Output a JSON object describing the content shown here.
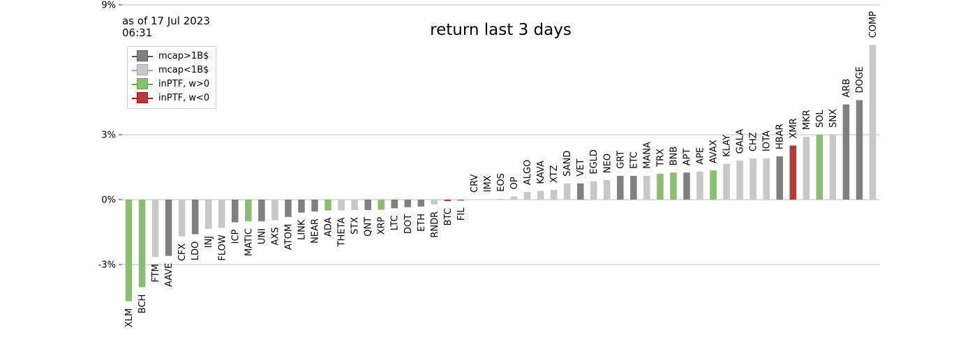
{
  "header": {
    "as_of_date": "as of 17 Jul 2023",
    "as_of_time": "06:31"
  },
  "legend": [
    {
      "label": "mcap>1B$",
      "color": "#808080",
      "edge": "#5a5a5a"
    },
    {
      "label": "mcap<1B$",
      "color": "#c8c8c8",
      "edge": "#a8a8a8"
    },
    {
      "label": "inPTF, w>0",
      "color": "#8cbd74",
      "edge": "#6aa050"
    },
    {
      "label": "inPTF, w<0",
      "color": "#b33b3b",
      "edge": "#8e2020"
    }
  ],
  "chart_data": {
    "type": "bar",
    "title": "return last 3 days",
    "xlabel": "",
    "ylabel": "",
    "ylim": [
      -5.6,
      10.8
    ],
    "yticks": [
      -3,
      0,
      3,
      9
    ],
    "ytick_labels": [
      "-3%",
      "0%",
      "3%",
      "9%"
    ],
    "grid": "horizontal",
    "legend_placement": "upper-left",
    "colors": {
      "big": "#808080",
      "small": "#c8c8c8",
      "pos": "#8cbd74",
      "neg": "#b33b3b"
    },
    "categories": [
      "XLM",
      "BCH",
      "FTM",
      "AAVE",
      "CFX",
      "LDO",
      "INJ",
      "FLOW",
      "ICP",
      "MATIC",
      "UNI",
      "AXS",
      "ATOM",
      "LINK",
      "NEAR",
      "ADA",
      "THETA",
      "STX",
      "QNT",
      "XRP",
      "LTC",
      "DOT",
      "ETH",
      "RNDR",
      "BTC",
      "FIL",
      "CRV",
      "IMX",
      "EOS",
      "OP",
      "ALGO",
      "KAVA",
      "XTZ",
      "SAND",
      "VET",
      "EGLD",
      "NEO",
      "GRT",
      "ETC",
      "MANA",
      "TRX",
      "BNB",
      "APT",
      "APE",
      "AVAX",
      "KLAY",
      "GALA",
      "CHZ",
      "IOTA",
      "HBAR",
      "XMR",
      "MKR",
      "SOL",
      "SNX",
      "ARB",
      "DOGE",
      "COMP"
    ],
    "values": [
      -4.7,
      -4.05,
      -2.65,
      -2.6,
      -1.7,
      -1.6,
      -1.35,
      -1.3,
      -1.05,
      -1.0,
      -1.0,
      -0.95,
      -0.8,
      -0.6,
      -0.55,
      -0.5,
      -0.5,
      -0.48,
      -0.48,
      -0.47,
      -0.4,
      -0.35,
      -0.32,
      -0.22,
      -0.07,
      -0.05,
      0.0,
      0.02,
      0.04,
      0.15,
      0.35,
      0.4,
      0.45,
      0.75,
      0.75,
      0.85,
      0.9,
      1.1,
      1.1,
      1.1,
      1.2,
      1.25,
      1.25,
      1.3,
      1.35,
      1.65,
      1.8,
      1.9,
      1.9,
      2.0,
      2.5,
      2.9,
      3.0,
      3.0,
      4.4,
      4.6,
      7.15
    ],
    "groups": [
      "pos",
      "pos",
      "small",
      "big",
      "small",
      "big",
      "small",
      "small",
      "big",
      "pos",
      "big",
      "small",
      "big",
      "big",
      "big",
      "pos",
      "small",
      "small",
      "big",
      "pos",
      "big",
      "big",
      "big",
      "small",
      "neg",
      "big",
      "small",
      "small",
      "small",
      "small",
      "small",
      "small",
      "small",
      "small",
      "big",
      "small",
      "small",
      "big",
      "big",
      "small",
      "pos",
      "pos",
      "big",
      "small",
      "pos",
      "small",
      "small",
      "small",
      "small",
      "big",
      "neg",
      "small",
      "pos",
      "small",
      "big",
      "big",
      "small"
    ]
  }
}
